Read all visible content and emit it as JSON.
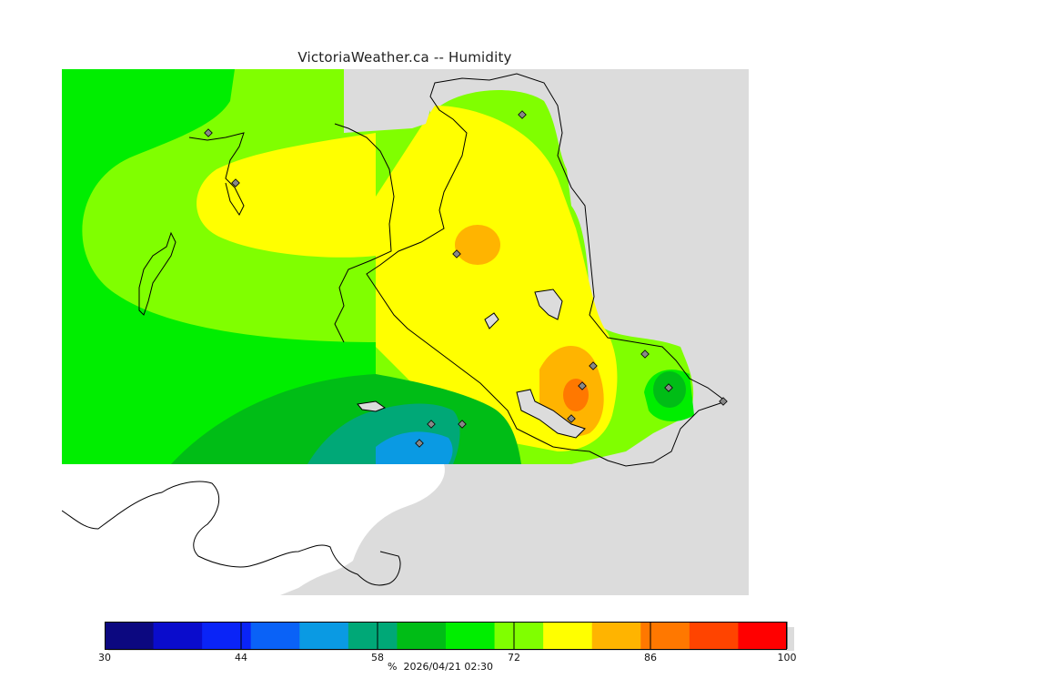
{
  "title": "VictoriaWeather.ca -- Humidity",
  "footer": {
    "unit": "%",
    "timestamp": "2026/04/21 02:30"
  },
  "colorbar": {
    "min": 30,
    "max": 100,
    "tick_labels": [
      "30",
      "44",
      "58",
      "72",
      "86",
      "100"
    ],
    "tick_values": [
      30,
      44,
      58,
      72,
      86,
      100
    ],
    "bins": [
      {
        "from": 30,
        "to": 35,
        "color": "#0c0880"
      },
      {
        "from": 35,
        "to": 40,
        "color": "#0a0ccc"
      },
      {
        "from": 40,
        "to": 45,
        "color": "#0a24f7"
      },
      {
        "from": 45,
        "to": 50,
        "color": "#0a62f7"
      },
      {
        "from": 50,
        "to": 55,
        "color": "#0a9ae3"
      },
      {
        "from": 55,
        "to": 60,
        "color": "#00a877"
      },
      {
        "from": 60,
        "to": 65,
        "color": "#00bd16"
      },
      {
        "from": 65,
        "to": 70,
        "color": "#00ee00"
      },
      {
        "from": 70,
        "to": 75,
        "color": "#80ff00"
      },
      {
        "from": 75,
        "to": 80,
        "color": "#ffff00"
      },
      {
        "from": 80,
        "to": 85,
        "color": "#ffb400"
      },
      {
        "from": 85,
        "to": 90,
        "color": "#ff7800"
      },
      {
        "from": 90,
        "to": 95,
        "color": "#ff4400"
      },
      {
        "from": 95,
        "to": 100,
        "color": "#ff0000"
      }
    ]
  },
  "colors": {
    "background_gray": "#dcdcdc",
    "land_no_data": "#ffffff",
    "coastline": "#000000",
    "station_marker": "#888888"
  },
  "station_icon": "diamond-station-marker"
}
